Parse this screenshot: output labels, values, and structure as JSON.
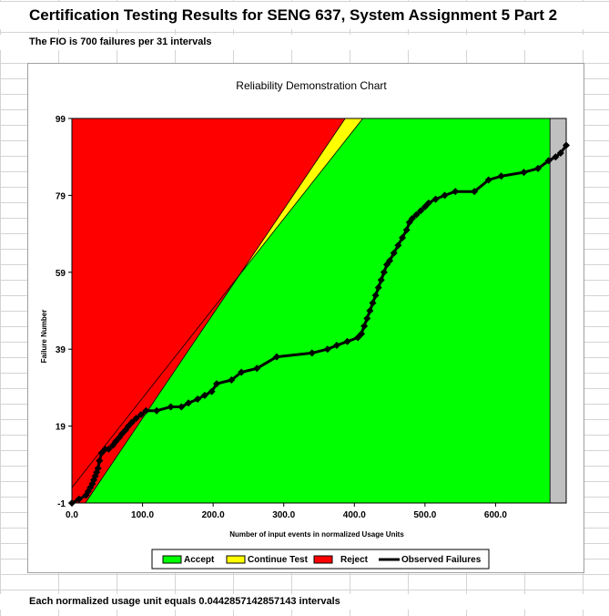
{
  "sheet": {
    "title": "Certification Testing Results for SENG 637, System Assignment 5 Part 2",
    "subtitle": "The FIO is 700 failures per 31 intervals",
    "footer": "Each normalized usage unit equals 0.0442857142857143 intervals"
  },
  "chart_data": {
    "type": "line",
    "title": "Reliability Demonstration Chart",
    "xlabel": "Number of input events in normalized Usage Units",
    "ylabel": "Failure Number",
    "xlim": [
      0,
      700
    ],
    "ylim": [
      -1,
      99
    ],
    "x_ticks": [
      "0.0",
      "100.0",
      "200.0",
      "300.0",
      "400.0",
      "500.0",
      "600.0"
    ],
    "x_tick_values": [
      0,
      100,
      200,
      300,
      400,
      500,
      600
    ],
    "y_ticks": [
      "-1",
      "19",
      "39",
      "59",
      "79",
      "99"
    ],
    "y_tick_values": [
      -1,
      19,
      39,
      59,
      79,
      99
    ],
    "grid": false,
    "legend_position": "bottom",
    "colors": {
      "accept": "#00ff00",
      "continue": "#ffff00",
      "reject": "#ff0000",
      "end": "#c0c0c0",
      "observed": "#000000"
    },
    "regions": {
      "accept_end_x": 677,
      "continue_upper": [
        [
          0,
          3
        ],
        [
          412,
          99
        ]
      ],
      "continue_lower": [
        [
          19,
          -1
        ],
        [
          387,
          99
        ]
      ]
    },
    "legend": [
      "Accept",
      "Continue Test",
      "Reject",
      "Observed Failures"
    ],
    "series": [
      {
        "name": "Observed Failures",
        "x": [
          0,
          10,
          20,
          23,
          26,
          29,
          31,
          33,
          35,
          37,
          39,
          42,
          47,
          52,
          58,
          62,
          67,
          71,
          76,
          80,
          85,
          91,
          98,
          105,
          120,
          140,
          155,
          165,
          178,
          188,
          198,
          205,
          226,
          240,
          262,
          290,
          340,
          362,
          375,
          390,
          405,
          410,
          414,
          418,
          422,
          426,
          430,
          434,
          438,
          442,
          446,
          450,
          456,
          462,
          468,
          474,
          478,
          482,
          488,
          494,
          500,
          505,
          515,
          528,
          543,
          570,
          590,
          608,
          640,
          660,
          675,
          685,
          692,
          700
        ],
        "y": [
          -1,
          0,
          1,
          2,
          3,
          4,
          5,
          6,
          7,
          8,
          10,
          12,
          13,
          13,
          14,
          15,
          16,
          17,
          18,
          19,
          20,
          21,
          22,
          23,
          23,
          24,
          24,
          25,
          26,
          27,
          28,
          30,
          31,
          33,
          34,
          37,
          38,
          39,
          40,
          41,
          42,
          43,
          45,
          47,
          49,
          51,
          53,
          55,
          57,
          59,
          61,
          62,
          64,
          66,
          68,
          70,
          72,
          73,
          74,
          75,
          76,
          77,
          78,
          79,
          80,
          80,
          83,
          84,
          85,
          86,
          88,
          89,
          90,
          92
        ]
      }
    ]
  }
}
